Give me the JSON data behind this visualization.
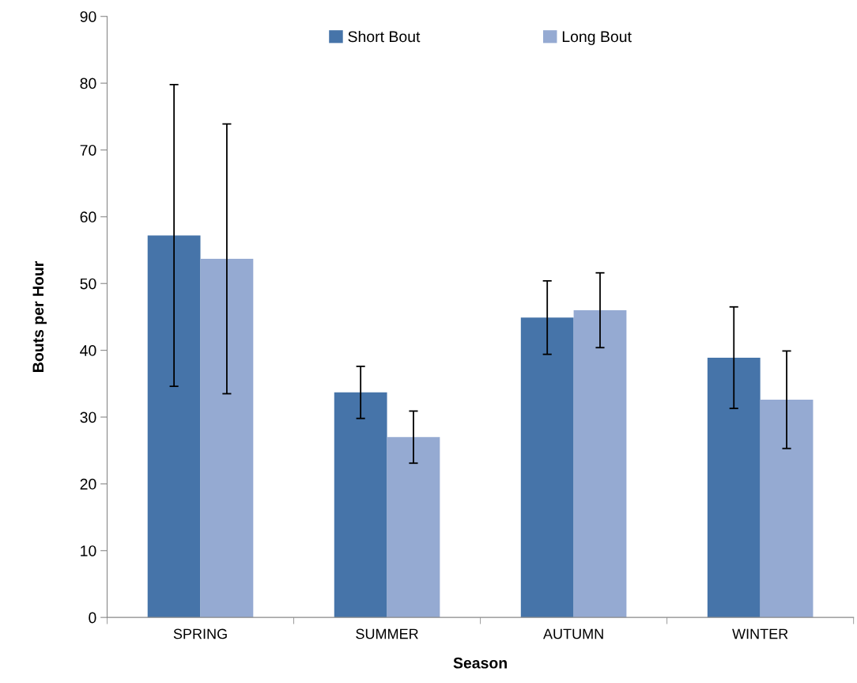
{
  "chart_data": {
    "type": "bar",
    "xlabel": "Season",
    "ylabel": "Bouts per Hour",
    "categories": [
      "SPRING",
      "SUMMER",
      "AUTUMN",
      "WINTER"
    ],
    "series": [
      {
        "name": "Short Bout",
        "color": "#4674a9",
        "values": [
          57.2,
          33.7,
          44.9,
          38.9
        ],
        "errors": [
          22.6,
          3.9,
          5.5,
          7.6
        ]
      },
      {
        "name": "Long Bout",
        "color": "#95aad2",
        "values": [
          53.7,
          27.0,
          46.0,
          32.6
        ],
        "errors": [
          20.2,
          3.9,
          5.6,
          7.3
        ]
      }
    ],
    "ylim": [
      0,
      90
    ],
    "yticks": [
      0,
      10,
      20,
      30,
      40,
      50,
      60,
      70,
      80,
      90
    ],
    "grid": false,
    "legend": "top"
  }
}
